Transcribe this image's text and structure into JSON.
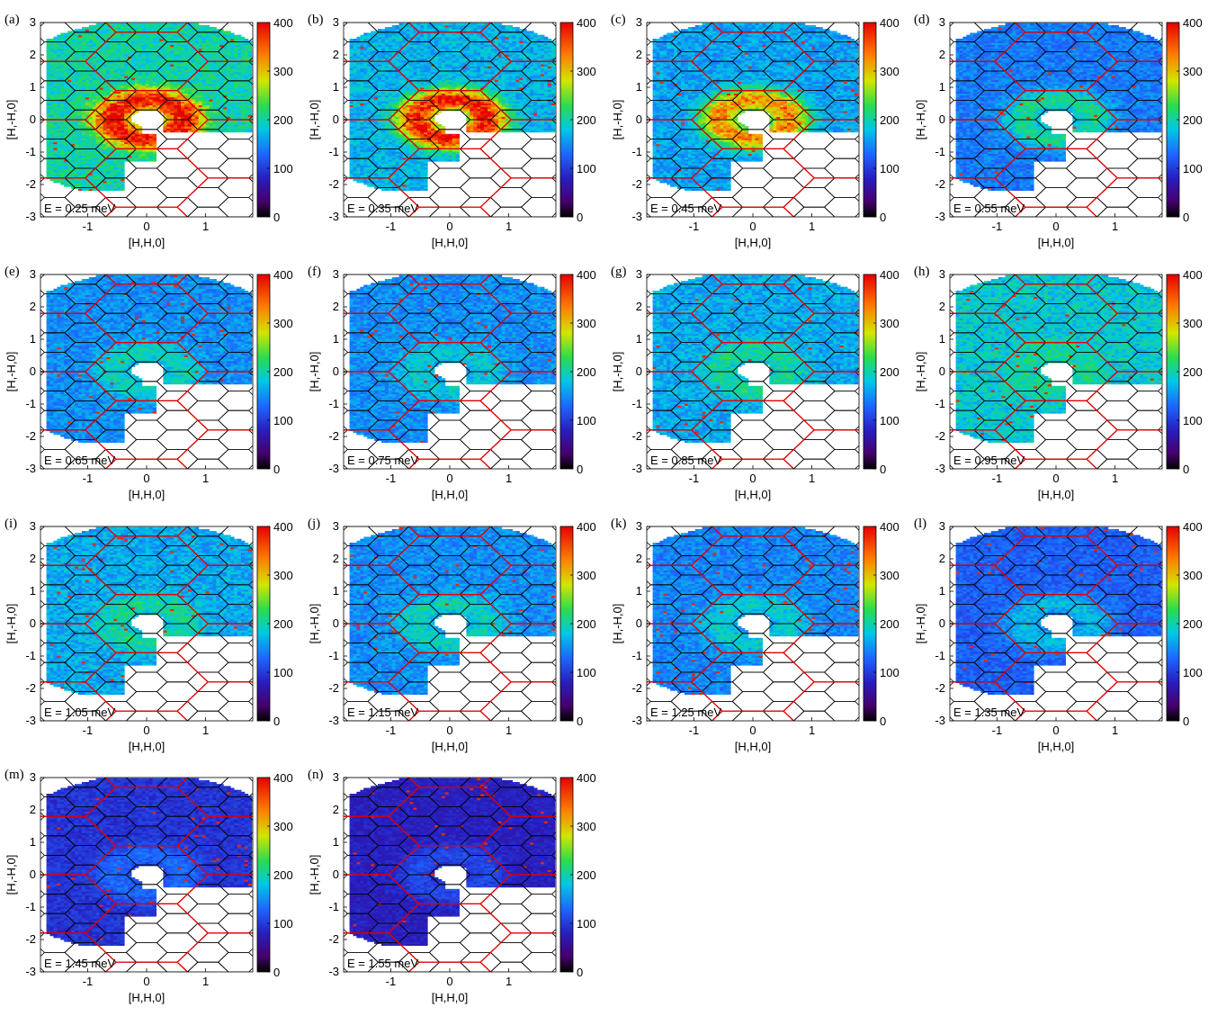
{
  "figure": {
    "xlabel": "[H,H,0]",
    "ylabel": "[H,-H,0]",
    "x_ticks": [
      "-1",
      "0",
      "1"
    ],
    "y_ticks": [
      "3",
      "2",
      "1",
      "0",
      "-1",
      "-2",
      "-3"
    ],
    "colorbar_ticks": [
      "400",
      "300",
      "200",
      "100",
      "0"
    ]
  },
  "chart_data": [
    {
      "type": "heatmap",
      "panel": "(a)",
      "energy_label": "E = 0.25 meV",
      "xlabel": "[H,H,0]",
      "ylabel": "[H,-H,0]",
      "xlim": [
        -1.8,
        1.8
      ],
      "ylim": [
        -3,
        3
      ],
      "clim": [
        0,
        400
      ],
      "typical_intensity": 200,
      "ring_intensity": 400,
      "colorbar_ticks": [
        0,
        100,
        200,
        300,
        400
      ]
    },
    {
      "type": "heatmap",
      "panel": "(b)",
      "energy_label": "E = 0.35 meV",
      "xlabel": "[H,H,0]",
      "ylabel": "[H,-H,0]",
      "xlim": [
        -1.8,
        1.8
      ],
      "ylim": [
        -3,
        3
      ],
      "clim": [
        0,
        400
      ],
      "typical_intensity": 170,
      "ring_intensity": 390,
      "colorbar_ticks": [
        0,
        100,
        200,
        300,
        400
      ]
    },
    {
      "type": "heatmap",
      "panel": "(c)",
      "energy_label": "E = 0.45 meV",
      "xlabel": "[H,H,0]",
      "ylabel": "[H,-H,0]",
      "xlim": [
        -1.8,
        1.8
      ],
      "ylim": [
        -3,
        3
      ],
      "clim": [
        0,
        400
      ],
      "typical_intensity": 160,
      "ring_intensity": 330,
      "colorbar_ticks": [
        0,
        100,
        200,
        300,
        400
      ]
    },
    {
      "type": "heatmap",
      "panel": "(d)",
      "energy_label": "E = 0.55 meV",
      "xlabel": "[H,H,0]",
      "ylabel": "[H,-H,0]",
      "xlim": [
        -1.8,
        1.8
      ],
      "ylim": [
        -3,
        3
      ],
      "clim": [
        0,
        400
      ],
      "typical_intensity": 140,
      "ring_intensity": 210,
      "colorbar_ticks": [
        0,
        100,
        200,
        300,
        400
      ]
    },
    {
      "type": "heatmap",
      "panel": "(e)",
      "energy_label": "E = 0.65 meV",
      "xlabel": "[H,H,0]",
      "ylabel": "[H,-H,0]",
      "xlim": [
        -1.8,
        1.8
      ],
      "ylim": [
        -3,
        3
      ],
      "clim": [
        0,
        400
      ],
      "typical_intensity": 150,
      "ring_intensity": 195,
      "colorbar_ticks": [
        0,
        100,
        200,
        300,
        400
      ]
    },
    {
      "type": "heatmap",
      "panel": "(f)",
      "energy_label": "E = 0.75 meV",
      "xlabel": "[H,H,0]",
      "ylabel": "[H,-H,0]",
      "xlim": [
        -1.8,
        1.8
      ],
      "ylim": [
        -3,
        3
      ],
      "clim": [
        0,
        400
      ],
      "typical_intensity": 150,
      "ring_intensity": 185,
      "colorbar_ticks": [
        0,
        100,
        200,
        300,
        400
      ]
    },
    {
      "type": "heatmap",
      "panel": "(g)",
      "energy_label": "E = 0.85 meV",
      "xlabel": "[H,H,0]",
      "ylabel": "[H,-H,0]",
      "xlim": [
        -1.8,
        1.8
      ],
      "ylim": [
        -3,
        3
      ],
      "clim": [
        0,
        400
      ],
      "typical_intensity": 165,
      "ring_intensity": 205,
      "colorbar_ticks": [
        0,
        100,
        200,
        300,
        400
      ]
    },
    {
      "type": "heatmap",
      "panel": "(h)",
      "energy_label": "E = 0.95 meV",
      "xlabel": "[H,H,0]",
      "ylabel": "[H,-H,0]",
      "xlim": [
        -1.8,
        1.8
      ],
      "ylim": [
        -3,
        3
      ],
      "clim": [
        0,
        400
      ],
      "typical_intensity": 185,
      "ring_intensity": 205,
      "colorbar_ticks": [
        0,
        100,
        200,
        300,
        400
      ]
    },
    {
      "type": "heatmap",
      "panel": "(i)",
      "energy_label": "E = 1.05 meV",
      "xlabel": "[H,H,0]",
      "ylabel": "[H,-H,0]",
      "xlim": [
        -1.8,
        1.8
      ],
      "ylim": [
        -3,
        3
      ],
      "clim": [
        0,
        400
      ],
      "typical_intensity": 165,
      "ring_intensity": 205,
      "colorbar_ticks": [
        0,
        100,
        200,
        300,
        400
      ]
    },
    {
      "type": "heatmap",
      "panel": "(j)",
      "energy_label": "E = 1.15 meV",
      "xlabel": "[H,H,0]",
      "ylabel": "[H,-H,0]",
      "xlim": [
        -1.8,
        1.8
      ],
      "ylim": [
        -3,
        3
      ],
      "clim": [
        0,
        400
      ],
      "typical_intensity": 150,
      "ring_intensity": 195,
      "colorbar_ticks": [
        0,
        100,
        200,
        300,
        400
      ]
    },
    {
      "type": "heatmap",
      "panel": "(k)",
      "energy_label": "E = 1.25 meV",
      "xlabel": "[H,H,0]",
      "ylabel": "[H,-H,0]",
      "xlim": [
        -1.8,
        1.8
      ],
      "ylim": [
        -3,
        3
      ],
      "clim": [
        0,
        400
      ],
      "typical_intensity": 145,
      "ring_intensity": 190,
      "colorbar_ticks": [
        0,
        100,
        200,
        300,
        400
      ]
    },
    {
      "type": "heatmap",
      "panel": "(l)",
      "energy_label": "E = 1.35 meV",
      "xlabel": "[H,H,0]",
      "ylabel": "[H,-H,0]",
      "xlim": [
        -1.8,
        1.8
      ],
      "ylim": [
        -3,
        3
      ],
      "clim": [
        0,
        400
      ],
      "typical_intensity": 125,
      "ring_intensity": 175,
      "colorbar_ticks": [
        0,
        100,
        200,
        300,
        400
      ]
    },
    {
      "type": "heatmap",
      "panel": "(m)",
      "energy_label": "E = 1.45 meV",
      "xlabel": "[H,H,0]",
      "ylabel": "[H,-H,0]",
      "xlim": [
        -1.8,
        1.8
      ],
      "ylim": [
        -3,
        3
      ],
      "clim": [
        0,
        400
      ],
      "typical_intensity": 95,
      "ring_intensity": 130,
      "colorbar_ticks": [
        0,
        100,
        200,
        300,
        400
      ]
    },
    {
      "type": "heatmap",
      "panel": "(n)",
      "energy_label": "E = 1.55 meV",
      "xlabel": "[H,H,0]",
      "ylabel": "[H,-H,0]",
      "xlim": [
        -1.8,
        1.8
      ],
      "ylim": [
        -3,
        3
      ],
      "clim": [
        0,
        400
      ],
      "typical_intensity": 80,
      "ring_intensity": 110,
      "colorbar_ticks": [
        0,
        100,
        200,
        300,
        400
      ]
    }
  ]
}
